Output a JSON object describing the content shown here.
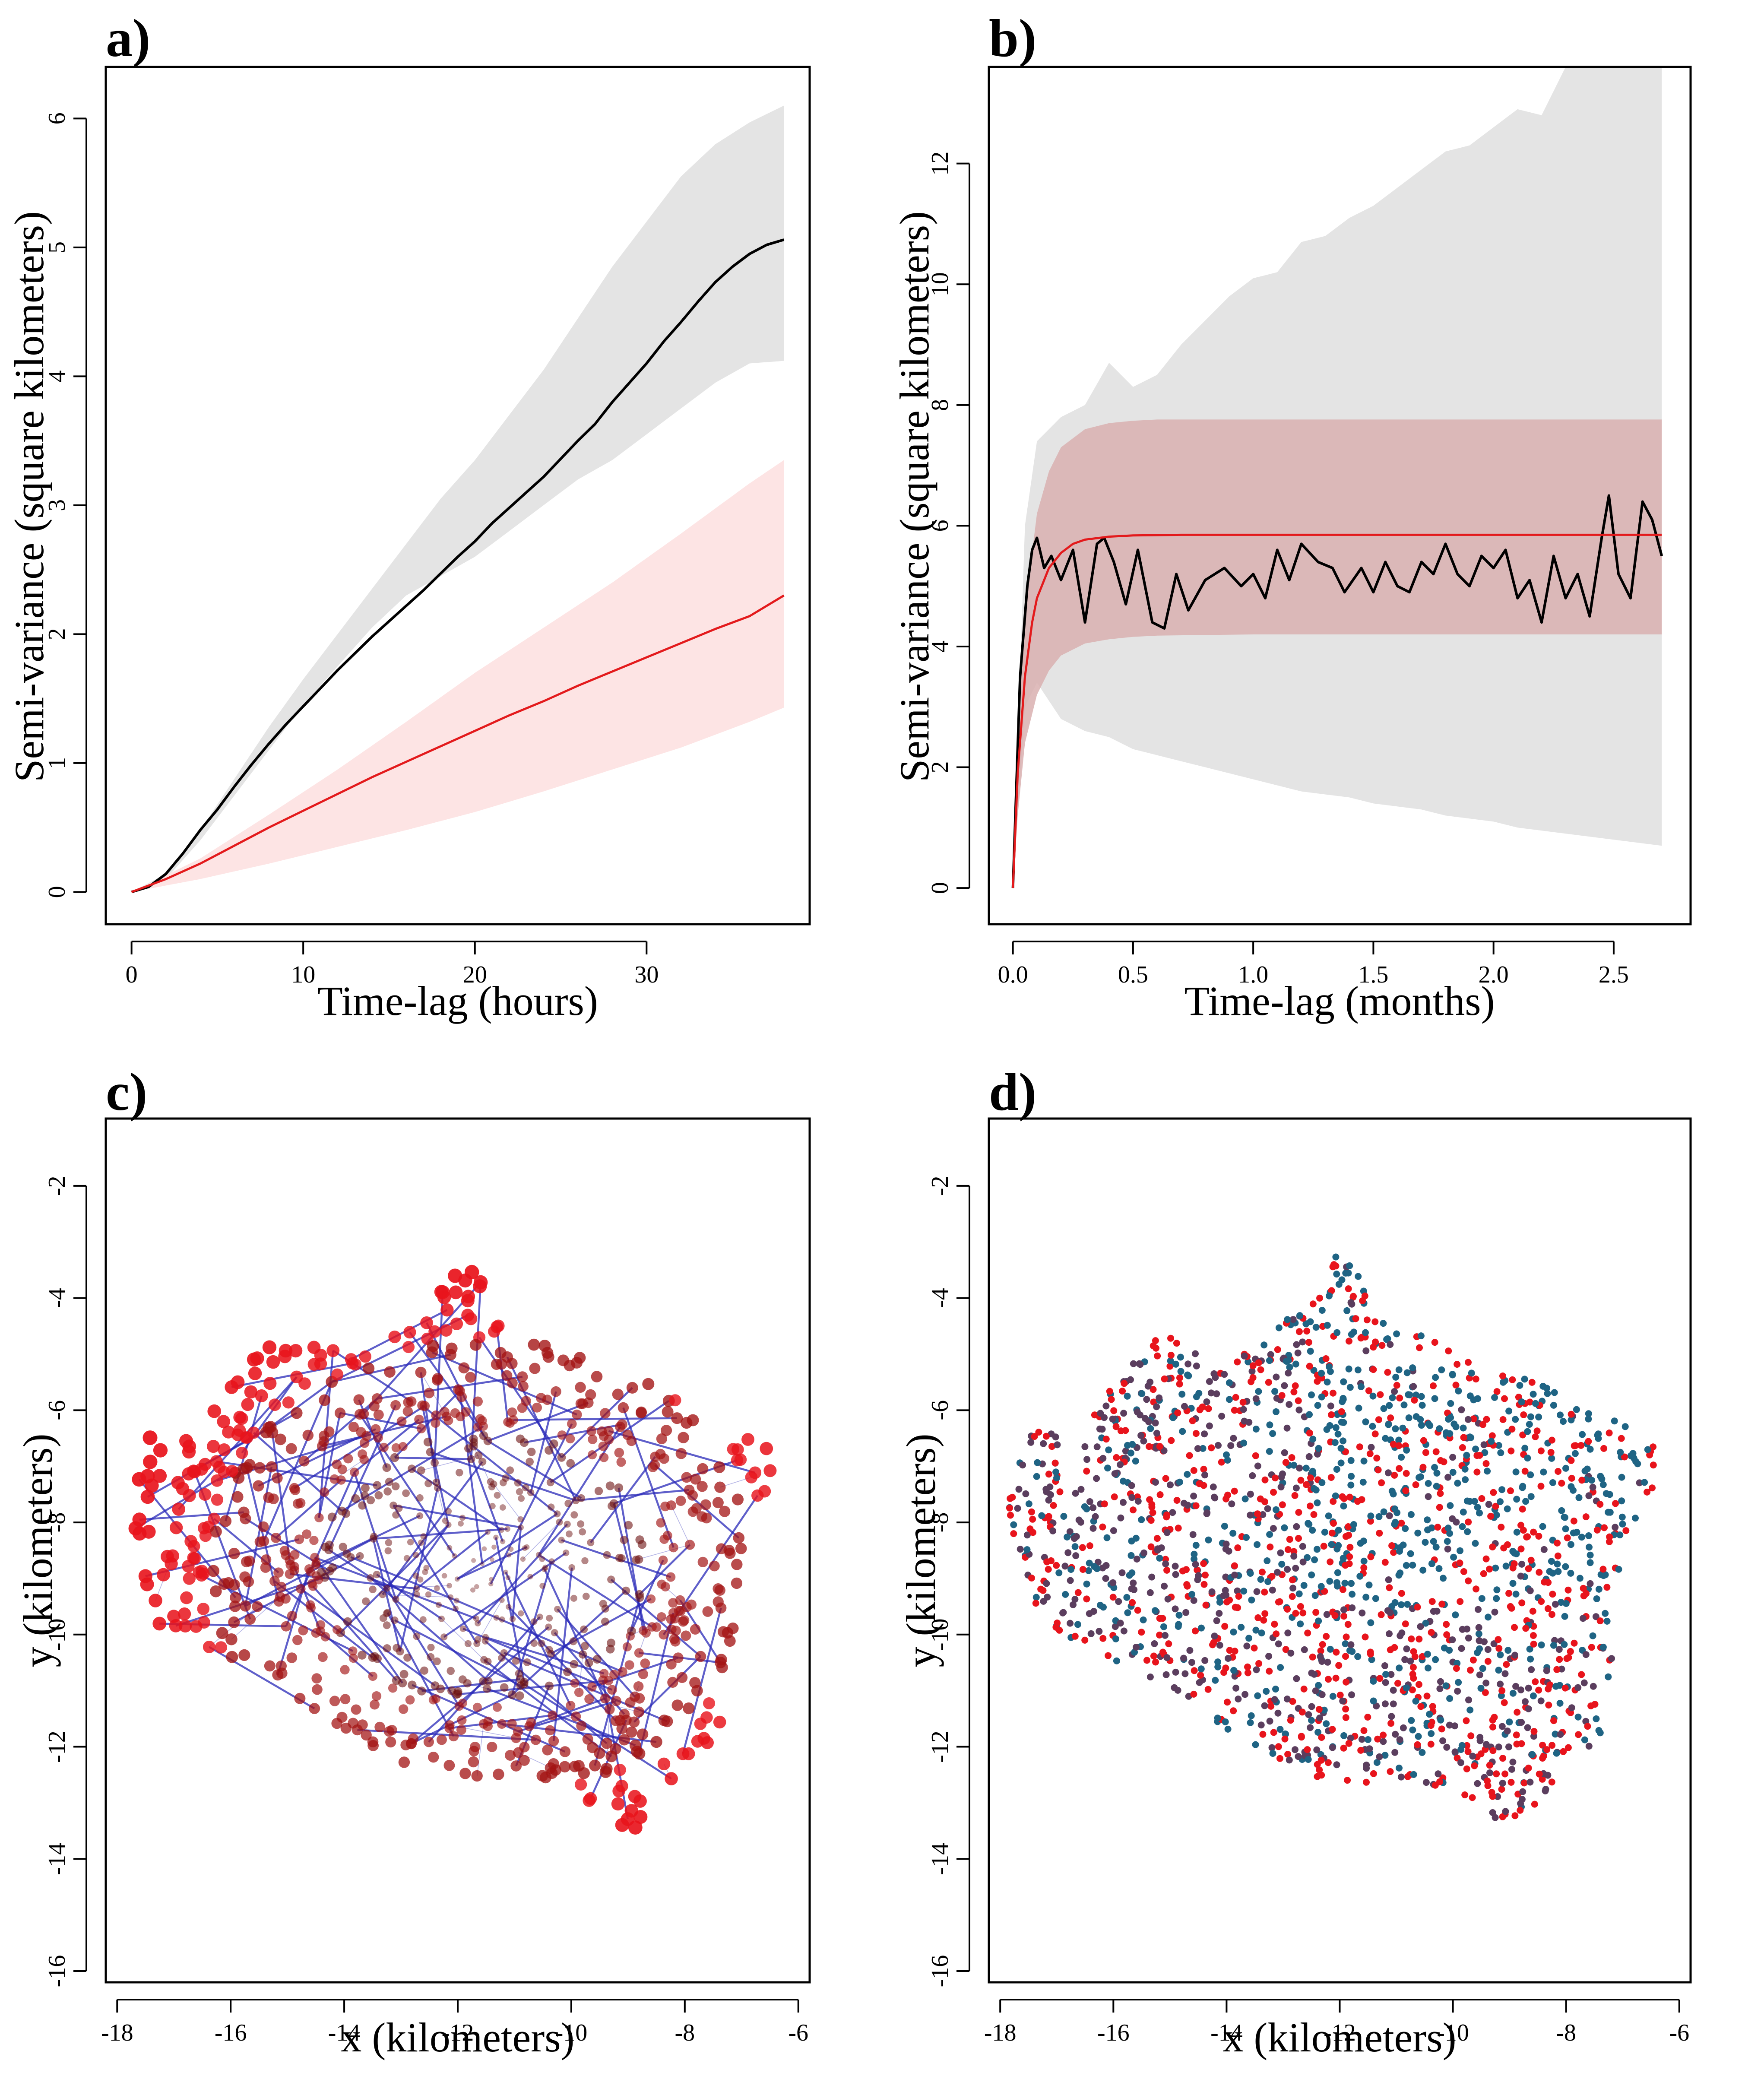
{
  "colors": {
    "gray_band": "#e4e4e4",
    "red_band": "#fde4e4",
    "red_band_b": "#d9b0b0",
    "empirical_line": "#000000",
    "model_line": "#e31a1c",
    "network_edge": "#2a2ab8",
    "point_red": "#e8141c",
    "point_dark": "#6e1313",
    "point_teal": "#1f6484",
    "point_purple": "#5b3e5e"
  },
  "chart_data": [
    {
      "panel": "a)",
      "type": "line",
      "xlabel": "Time-lag (hours)",
      "ylabel": "Semi-variance (square kilometers)",
      "xlim": [
        -1.5,
        39.5
      ],
      "ylim": [
        -0.25,
        6.4
      ],
      "xticks": [
        0,
        10,
        20,
        30
      ],
      "yticks": [
        0,
        1,
        2,
        3,
        4,
        5,
        6
      ],
      "bands": [
        {
          "name": "empirical-ci",
          "color": "#e4e4e4",
          "x": [
            0,
            2,
            4,
            6,
            8,
            10,
            12,
            14,
            16,
            18,
            20,
            22,
            24,
            26,
            28,
            30,
            32,
            34,
            36,
            38
          ],
          "lower": [
            0,
            0.1,
            0.4,
            0.75,
            1.1,
            1.45,
            1.75,
            2.05,
            2.3,
            2.45,
            2.6,
            2.8,
            3.0,
            3.2,
            3.35,
            3.55,
            3.75,
            3.95,
            4.1,
            4.12
          ],
          "upper": [
            0,
            0.14,
            0.48,
            0.88,
            1.28,
            1.65,
            2.0,
            2.35,
            2.7,
            3.05,
            3.35,
            3.7,
            4.05,
            4.45,
            4.85,
            5.2,
            5.55,
            5.8,
            5.97,
            6.1
          ]
        },
        {
          "name": "model-ci",
          "color": "#fde4e4",
          "x": [
            0,
            4,
            8,
            12,
            16,
            20,
            24,
            28,
            32,
            36,
            38
          ],
          "lower": [
            0,
            0.1,
            0.22,
            0.35,
            0.48,
            0.62,
            0.78,
            0.95,
            1.12,
            1.32,
            1.43
          ],
          "upper": [
            0,
            0.26,
            0.6,
            0.95,
            1.32,
            1.7,
            2.05,
            2.4,
            2.78,
            3.17,
            3.35
          ]
        }
      ],
      "series": [
        {
          "color": "#000000",
          "x": [
            0,
            1,
            2,
            3,
            4,
            5,
            6,
            7,
            8,
            9,
            10,
            11,
            12,
            13,
            14,
            15,
            16,
            17,
            18,
            19,
            20,
            21,
            22,
            23,
            24,
            25,
            26,
            27,
            28,
            29,
            30,
            31,
            32,
            33,
            34,
            35,
            36,
            37,
            38
          ],
          "y": [
            0,
            0.04,
            0.14,
            0.3,
            0.48,
            0.64,
            0.82,
            0.99,
            1.15,
            1.3,
            1.44,
            1.58,
            1.72,
            1.85,
            1.98,
            2.1,
            2.22,
            2.34,
            2.47,
            2.6,
            2.72,
            2.86,
            2.98,
            3.1,
            3.22,
            3.36,
            3.5,
            3.63,
            3.8,
            3.95,
            4.1,
            4.27,
            4.42,
            4.58,
            4.73,
            4.85,
            4.95,
            5.02,
            5.06
          ]
        },
        {
          "color": "#e31a1c",
          "x": [
            0,
            2,
            4,
            6,
            8,
            10,
            12,
            14,
            16,
            18,
            20,
            22,
            24,
            26,
            28,
            30,
            32,
            34,
            36,
            38
          ],
          "y": [
            0,
            0.1,
            0.22,
            0.36,
            0.5,
            0.63,
            0.76,
            0.89,
            1.01,
            1.13,
            1.25,
            1.37,
            1.48,
            1.6,
            1.71,
            1.82,
            1.93,
            2.04,
            2.14,
            2.3
          ]
        }
      ]
    },
    {
      "panel": "b)",
      "type": "line",
      "xlabel": "Time-lag (months)",
      "ylabel": "Semi-variance (square kilometers)",
      "xlim": [
        -0.1,
        2.82
      ],
      "ylim": [
        -0.6,
        13.6
      ],
      "xticks": [
        0.0,
        0.5,
        1.0,
        1.5,
        2.0,
        2.5
      ],
      "xtick_labels": [
        "0.0",
        "0.5",
        "1.0",
        "1.5",
        "2.0",
        "2.5"
      ],
      "yticks": [
        0,
        2,
        4,
        6,
        8,
        10,
        12
      ],
      "bands": [
        {
          "name": "empirical-ci",
          "color": "#e4e4e4",
          "x": [
            0,
            0.05,
            0.1,
            0.2,
            0.3,
            0.4,
            0.5,
            0.6,
            0.7,
            0.8,
            0.9,
            1.0,
            1.1,
            1.2,
            1.3,
            1.4,
            1.5,
            1.6,
            1.7,
            1.8,
            1.9,
            2.0,
            2.1,
            2.2,
            2.3,
            2.4,
            2.5,
            2.6,
            2.7
          ],
          "lower": [
            0,
            3.0,
            3.4,
            2.8,
            2.6,
            2.5,
            2.3,
            2.2,
            2.1,
            2.0,
            1.9,
            1.8,
            1.7,
            1.6,
            1.55,
            1.5,
            1.4,
            1.35,
            1.3,
            1.2,
            1.15,
            1.1,
            1.0,
            0.95,
            0.9,
            0.85,
            0.8,
            0.75,
            0.7
          ],
          "upper": [
            0,
            6.0,
            7.4,
            7.8,
            8.0,
            8.7,
            8.3,
            8.5,
            9.0,
            9.4,
            9.8,
            10.1,
            10.2,
            10.7,
            10.8,
            11.1,
            11.3,
            11.6,
            11.9,
            12.2,
            12.3,
            12.6,
            12.9,
            12.8,
            13.6,
            13.6,
            13.6,
            13.6,
            13.6
          ]
        },
        {
          "name": "model-ci",
          "color": "#d9b0b0",
          "x": [
            0,
            0.02,
            0.05,
            0.1,
            0.15,
            0.2,
            0.3,
            0.4,
            0.5,
            0.6,
            0.8,
            1.0,
            1.5,
            2.0,
            2.5,
            2.7
          ],
          "lower": [
            0,
            1.2,
            2.4,
            3.2,
            3.6,
            3.85,
            4.05,
            4.12,
            4.16,
            4.18,
            4.19,
            4.2,
            4.2,
            4.2,
            4.2,
            4.2
          ],
          "upper": [
            0,
            2.6,
            4.6,
            6.2,
            6.9,
            7.3,
            7.6,
            7.7,
            7.74,
            7.76,
            7.76,
            7.76,
            7.76,
            7.76,
            7.76,
            7.76
          ]
        }
      ],
      "series": [
        {
          "color": "#000000",
          "x": [
            0,
            0.03,
            0.06,
            0.08,
            0.1,
            0.13,
            0.16,
            0.2,
            0.25,
            0.3,
            0.35,
            0.38,
            0.42,
            0.47,
            0.52,
            0.58,
            0.63,
            0.68,
            0.73,
            0.8,
            0.88,
            0.95,
            1.0,
            1.05,
            1.1,
            1.15,
            1.2,
            1.27,
            1.33,
            1.38,
            1.45,
            1.5,
            1.55,
            1.6,
            1.65,
            1.7,
            1.75,
            1.8,
            1.85,
            1.9,
            1.95,
            2.0,
            2.05,
            2.1,
            2.15,
            2.2,
            2.25,
            2.3,
            2.35,
            2.4,
            2.45,
            2.48,
            2.52,
            2.57,
            2.62,
            2.66,
            2.7
          ],
          "y": [
            0,
            3.5,
            5.0,
            5.6,
            5.8,
            5.3,
            5.5,
            5.1,
            5.6,
            4.4,
            5.7,
            5.8,
            5.4,
            4.7,
            5.6,
            4.4,
            4.3,
            5.2,
            4.6,
            5.1,
            5.3,
            5.0,
            5.2,
            4.8,
            5.6,
            5.1,
            5.7,
            5.4,
            5.3,
            4.9,
            5.3,
            4.9,
            5.4,
            5.0,
            4.9,
            5.4,
            5.2,
            5.7,
            5.2,
            5.0,
            5.5,
            5.3,
            5.6,
            4.8,
            5.1,
            4.4,
            5.5,
            4.8,
            5.2,
            4.5,
            5.8,
            6.5,
            5.2,
            4.8,
            6.4,
            6.1,
            5.5
          ]
        },
        {
          "color": "#e31a1c",
          "x": [
            0,
            0.02,
            0.05,
            0.08,
            0.1,
            0.15,
            0.2,
            0.25,
            0.3,
            0.4,
            0.5,
            0.7,
            1.0,
            1.5,
            2.0,
            2.5,
            2.7
          ],
          "y": [
            0,
            1.9,
            3.5,
            4.4,
            4.8,
            5.3,
            5.55,
            5.7,
            5.77,
            5.82,
            5.84,
            5.85,
            5.85,
            5.85,
            5.85,
            5.85,
            5.85
          ]
        }
      ]
    },
    {
      "panel": "c)",
      "type": "scatter",
      "xlabel": "x (kilometers)",
      "ylabel": "y (kilometers)",
      "xlim": [
        -18.2,
        -5.8
      ],
      "ylim": [
        -16.2,
        -0.8
      ],
      "xticks": [
        -18,
        -16,
        -14,
        -12,
        -10,
        -8,
        -6
      ],
      "yticks": [
        -16,
        -14,
        -12,
        -10,
        -8,
        -6,
        -4,
        -2
      ]
    },
    {
      "panel": "d)",
      "type": "scatter",
      "xlabel": "x (kilometers)",
      "ylabel": "y (kilometers)",
      "xlim": [
        -18.2,
        -5.8
      ],
      "ylim": [
        -16.2,
        -0.8
      ],
      "xticks": [
        -18,
        -16,
        -14,
        -12,
        -10,
        -8,
        -6
      ],
      "yticks": [
        -16,
        -14,
        -12,
        -10,
        -8,
        -6,
        -4,
        -2
      ]
    }
  ]
}
